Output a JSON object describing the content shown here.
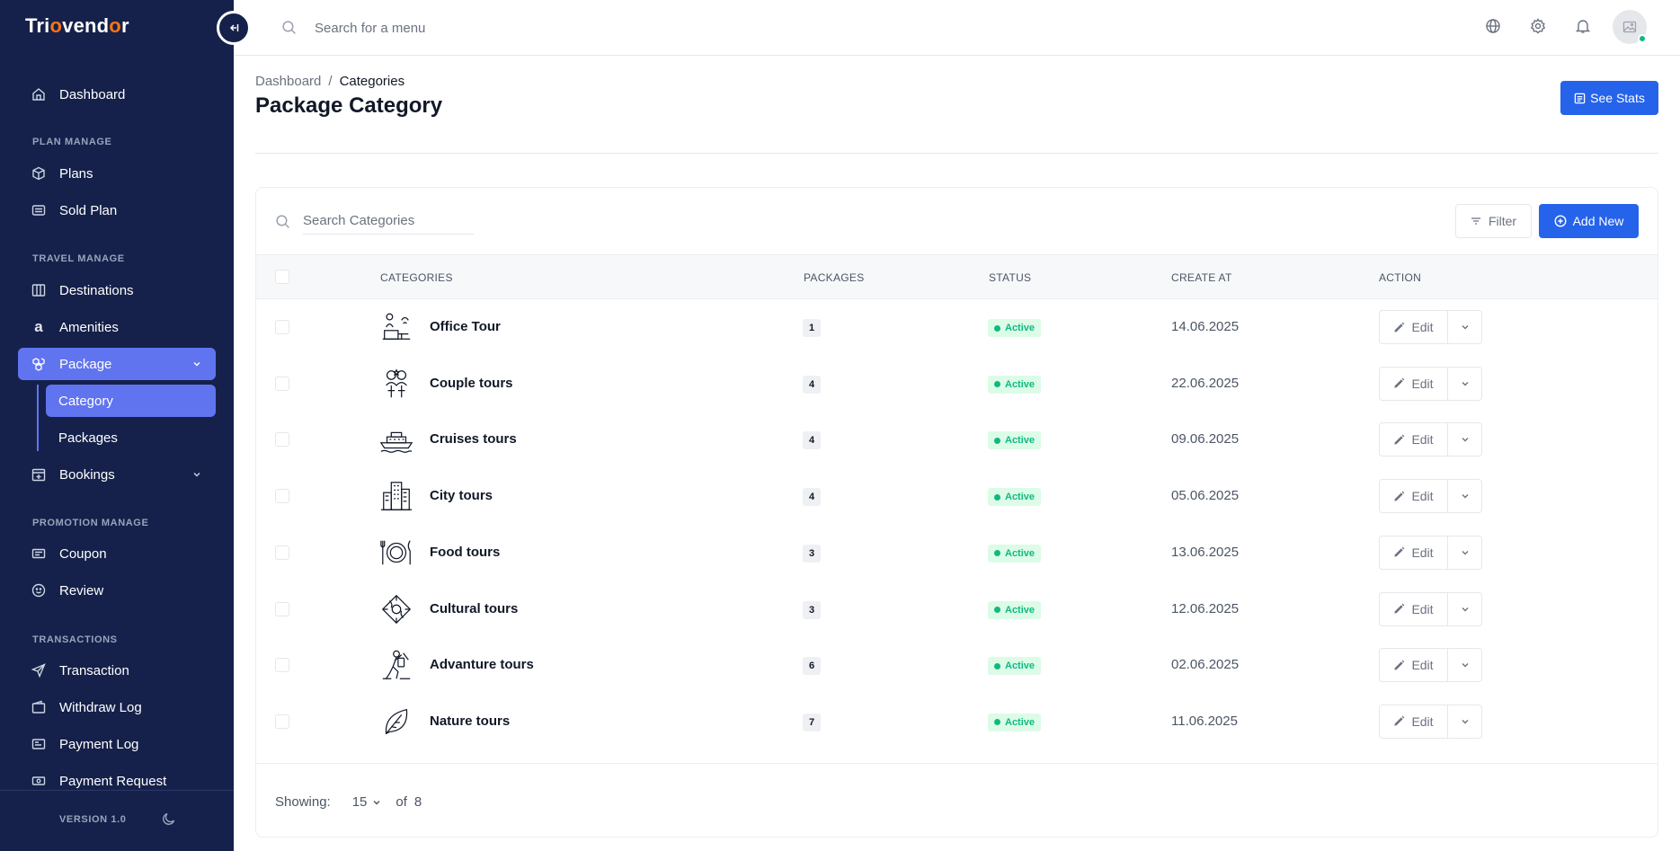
{
  "brand": {
    "logo_pre": "Tri",
    "logo_o": "o",
    "logo_mid": "vend",
    "logo_o2": "o",
    "logo_end": "r"
  },
  "colors": {
    "sidebar_bg": "#15214a",
    "accent": "#6174f0",
    "primary_button": "#2563eb",
    "status_active": "#10b981"
  },
  "sidebar": {
    "dashboard": "Dashboard",
    "sections": {
      "plan": "PLAN MANAGE",
      "travel": "TRAVEL MANAGE",
      "promotion": "PROMOTION MANAGE",
      "transactions": "TRANSACTIONS"
    },
    "items": {
      "plans": "Plans",
      "sold_plan": "Sold Plan",
      "destinations": "Destinations",
      "amenities": "Amenities",
      "package": "Package",
      "category": "Category",
      "packages": "Packages",
      "bookings": "Bookings",
      "coupon": "Coupon",
      "review": "Review",
      "transaction": "Transaction",
      "withdraw_log": "Withdraw Log",
      "payment_log": "Payment Log",
      "payment_request": "Payment Request"
    },
    "version": "VERSION 1.0"
  },
  "topbar": {
    "search_placeholder": "Search for a menu"
  },
  "header": {
    "breadcrumb_home": "Dashboard",
    "breadcrumb_sep": "/",
    "breadcrumb_current": "Categories",
    "title": "Package Category",
    "see_stats": "See Stats"
  },
  "table": {
    "search_placeholder": "Search Categories",
    "filter_label": "Filter",
    "add_label": "Add New",
    "columns": {
      "categories": "CATEGORIES",
      "packages": "PACKAGES",
      "status": "STATUS",
      "created": "CREATE AT",
      "action": "ACTION"
    },
    "edit_label": "Edit",
    "rows": [
      {
        "name": "Office Tour",
        "packages": "1",
        "status": "Active",
        "date": "14.06.2025",
        "icon": "office-icon"
      },
      {
        "name": "Couple tours",
        "packages": "4",
        "status": "Active",
        "date": "22.06.2025",
        "icon": "couple-icon"
      },
      {
        "name": "Cruises tours",
        "packages": "4",
        "status": "Active",
        "date": "09.06.2025",
        "icon": "ship-icon"
      },
      {
        "name": "City tours",
        "packages": "4",
        "status": "Active",
        "date": "05.06.2025",
        "icon": "city-icon"
      },
      {
        "name": "Food tours",
        "packages": "3",
        "status": "Active",
        "date": "13.06.2025",
        "icon": "plate-icon"
      },
      {
        "name": "Cultural tours",
        "packages": "3",
        "status": "Active",
        "date": "12.06.2025",
        "icon": "culture-icon"
      },
      {
        "name": "Advanture tours",
        "packages": "6",
        "status": "Active",
        "date": "02.06.2025",
        "icon": "hiker-icon"
      },
      {
        "name": "Nature tours",
        "packages": "7",
        "status": "Active",
        "date": "11.06.2025",
        "icon": "leaf-icon"
      }
    ],
    "footer": {
      "showing_label": "Showing:",
      "per_page": "15",
      "of_label": "of",
      "total": "8"
    }
  }
}
